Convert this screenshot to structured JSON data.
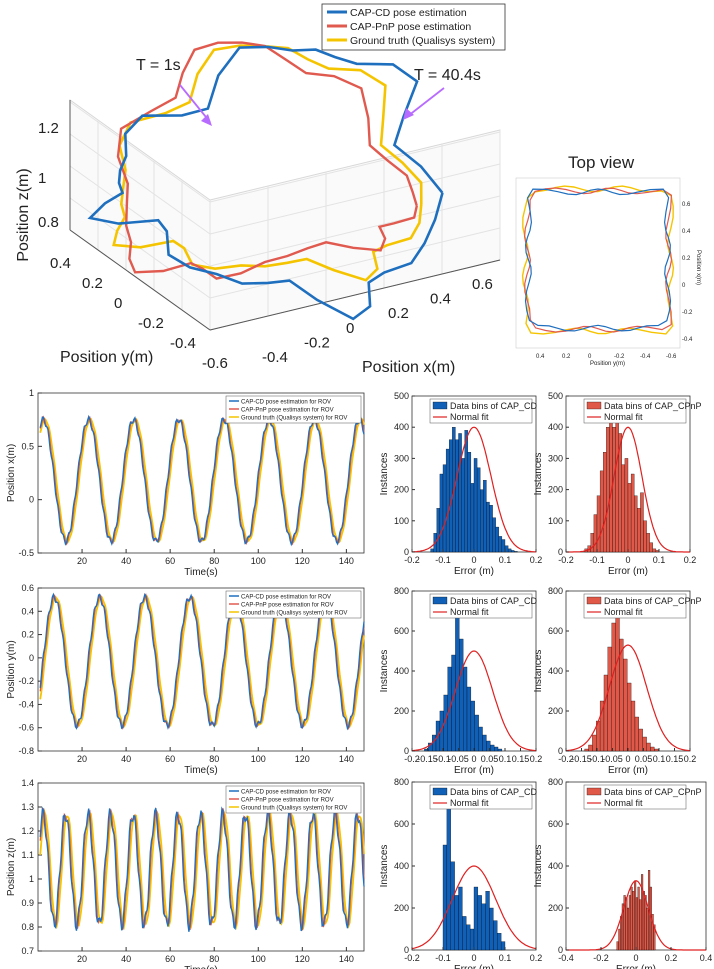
{
  "top": {
    "legend": [
      "CAP-CD pose estimation",
      "CAP-PnP pose estimation",
      "Ground truth (Qualisys system)"
    ],
    "annotations": [
      {
        "text": "T = 1s"
      },
      {
        "text": "T = 40.4s"
      }
    ],
    "z_label": "Position z(m)",
    "y_label": "Position y(m)",
    "x_label": "Position x(m)",
    "z_ticks": [
      "1.2",
      "1",
      "0.8"
    ],
    "y_ticks": [
      "0.4",
      "0.2",
      "0",
      "-0.2",
      "-0.4",
      "-0.6"
    ],
    "x_ticks": [
      "-0.4",
      "-0.2",
      "0",
      "0.2",
      "0.4",
      "0.6"
    ],
    "topview": {
      "title": "Top view",
      "xlabel": "Position y(m)",
      "ylabel": "Position x(m)",
      "x_ticks": [
        "0.4",
        "0.2",
        "0",
        "-0.2",
        "-0.4",
        "-0.6"
      ],
      "y_ticks": [
        "0.6",
        "0.4",
        "0.2",
        "0",
        "-0.2",
        "-0.4"
      ]
    }
  },
  "colors": {
    "cd": "#1f6fbf",
    "pnp": "#e05a4f",
    "gt": "#f5c400",
    "fit": "#e02020",
    "barcd": "#1060b8",
    "barpnp": "#e05848"
  },
  "chart_data": [
    {
      "type": "line",
      "ylabel": "Position x(m)",
      "xlabel": "Time(s)",
      "xlim": [
        0,
        148
      ],
      "ylim": [
        -0.5,
        1
      ],
      "x_ticks": [
        20,
        40,
        60,
        80,
        100,
        120,
        140
      ],
      "y_ticks": [
        -0.5,
        0,
        0.5,
        1
      ],
      "legend": [
        "CAP-CD pose estimation for ROV",
        "CAP-PnP pose estimation for ROV",
        "Ground truth (Qualisys system) for ROV"
      ],
      "wave": {
        "mean": 0.18,
        "amp": 0.57,
        "period": 20.5,
        "phase": -2.5
      }
    },
    {
      "type": "line",
      "ylabel": "Position y(m)",
      "xlabel": "Time(s)",
      "xlim": [
        0,
        148
      ],
      "ylim": [
        -0.8,
        0.6
      ],
      "x_ticks": [
        20,
        40,
        60,
        80,
        100,
        120,
        140
      ],
      "y_ticks": [
        -0.8,
        -0.6,
        -0.4,
        -0.2,
        0,
        0.2,
        0.4,
        0.6
      ],
      "legend": [
        "CAP-CD pose estimation for ROV",
        "CAP-PnP pose estimation for ROV",
        "Ground truth (Qualisys system) for ROV"
      ],
      "wave": {
        "mean": -0.03,
        "amp": 0.55,
        "period": 20.5,
        "phase": 2.5
      }
    },
    {
      "type": "line",
      "ylabel": "Position z(m)",
      "xlabel": "Time(s)",
      "xlim": [
        0,
        148
      ],
      "ylim": [
        0.7,
        1.4
      ],
      "x_ticks": [
        20,
        40,
        60,
        80,
        100,
        120,
        140
      ],
      "y_ticks": [
        0.7,
        0.8,
        0.9,
        1,
        1.1,
        1.2,
        1.3,
        1.4
      ],
      "legend": [
        "CAP-CD pose estimation for ROV",
        "CAP-PnP pose estimation for ROV",
        "Ground truth (Qualisys system) for ROV"
      ],
      "wave": {
        "mean": 1.04,
        "amp": 0.23,
        "period": 10.2,
        "phase": 0
      }
    },
    {
      "type": "bar",
      "legend": [
        "Data bins of CAP_CD",
        "Normal fit"
      ],
      "xlabel": "Error (m)",
      "ylabel": "Instances",
      "xlim": [
        -0.2,
        0.2
      ],
      "ylim": [
        0,
        500
      ],
      "x_ticks": [
        -0.2,
        -0.1,
        0,
        0.1,
        0.2
      ],
      "y_ticks": [
        0,
        100,
        200,
        300,
        400,
        500
      ],
      "bin_start": -0.14,
      "bin_width": 0.01,
      "values": [
        10,
        60,
        140,
        250,
        280,
        330,
        360,
        400,
        360,
        380,
        300,
        390,
        320,
        220,
        300,
        270,
        200,
        230,
        160,
        150,
        110,
        80,
        50,
        40,
        20,
        10,
        5,
        2
      ],
      "fit": {
        "mu": 0,
        "sigma": 0.055,
        "peak": 400
      }
    },
    {
      "type": "bar",
      "legend": [
        "Data bins of CAP_CPnP",
        "Normal fit"
      ],
      "xlabel": "Error (m)",
      "ylabel": "Instances",
      "xlim": [
        -0.2,
        0.2
      ],
      "ylim": [
        0,
        500
      ],
      "x_ticks": [
        -0.2,
        -0.1,
        0,
        0.1,
        0.2
      ],
      "y_ticks": [
        0,
        100,
        200,
        300,
        400,
        500
      ],
      "bin_start": -0.14,
      "bin_width": 0.01,
      "values": [
        10,
        20,
        60,
        120,
        180,
        260,
        320,
        400,
        460,
        400,
        420,
        380,
        280,
        300,
        220,
        250,
        180,
        140,
        190,
        100,
        60,
        30,
        10,
        5
      ],
      "fit": {
        "mu": 0,
        "sigma": 0.045,
        "peak": 400
      }
    },
    {
      "type": "bar",
      "legend": [
        "Data bins of CAP_CD",
        "Normal fit"
      ],
      "xlabel": "Error (m)",
      "ylabel": "Instances",
      "xlim": [
        -0.2,
        0.2
      ],
      "ylim": [
        0,
        800
      ],
      "x_ticks": [
        -0.2,
        -0.15,
        -0.1,
        -0.05,
        0,
        0.05,
        0.1,
        0.15,
        0.2
      ],
      "y_ticks": [
        0,
        200,
        400,
        600,
        800
      ],
      "bin_start": -0.16,
      "bin_width": 0.0125,
      "values": [
        10,
        40,
        80,
        150,
        200,
        280,
        420,
        480,
        680,
        560,
        420,
        320,
        250,
        180,
        120,
        80,
        50,
        30,
        20,
        10
      ],
      "fit": {
        "mu": 0,
        "sigma": 0.06,
        "peak": 500
      }
    },
    {
      "type": "bar",
      "legend": [
        "Data bins of CAP_CPnP",
        "Normal fit"
      ],
      "xlabel": "Error (m)",
      "ylabel": "Instances",
      "xlim": [
        -0.2,
        0.2
      ],
      "ylim": [
        0,
        800
      ],
      "x_ticks": [
        -0.2,
        -0.15,
        -0.1,
        -0.05,
        0,
        0.05,
        0.1,
        0.15,
        0.2
      ],
      "y_ticks": [
        0,
        200,
        400,
        600,
        800
      ],
      "bin_start": -0.14,
      "bin_width": 0.0125,
      "values": [
        10,
        30,
        80,
        150,
        250,
        380,
        520,
        640,
        680,
        560,
        460,
        340,
        250,
        170,
        110,
        70,
        40,
        20,
        10
      ],
      "fit": {
        "mu": 0,
        "sigma": 0.06,
        "peak": 530
      }
    },
    {
      "type": "bar",
      "legend": [
        "Data bins of CAP_CD",
        "Normal fit"
      ],
      "xlabel": "Error (m)",
      "ylabel": "Instances",
      "xlim": [
        -0.2,
        0.2
      ],
      "ylim": [
        0,
        800
      ],
      "x_ticks": [
        -0.2,
        -0.1,
        0,
        0.1,
        0.2
      ],
      "y_ticks": [
        0,
        200,
        400,
        600,
        800
      ],
      "bin_start": -0.1,
      "bin_width": 0.0125,
      "values": [
        500,
        680,
        420,
        260,
        300,
        160,
        120,
        100,
        300,
        260,
        220,
        280,
        200,
        140,
        80,
        40
      ],
      "fit": {
        "mu": 0,
        "sigma": 0.07,
        "peak": 400
      }
    },
    {
      "type": "bar",
      "legend": [
        "Data bins of CAP_CPnP",
        "Normal fit"
      ],
      "xlabel": "Error (m)",
      "ylabel": "Instances",
      "xlim": [
        -0.4,
        0.4
      ],
      "ylim": [
        0,
        800
      ],
      "x_ticks": [
        -0.4,
        -0.2,
        0,
        0.2,
        0.4
      ],
      "y_ticks": [
        0,
        200,
        400,
        600,
        800
      ],
      "bin_start": -0.11,
      "bin_width": 0.01,
      "values": [
        40,
        100,
        160,
        220,
        260,
        250,
        200,
        260,
        300,
        280,
        330,
        250,
        300,
        240,
        360,
        280,
        260,
        200,
        380,
        300,
        170,
        120
      ],
      "fit": {
        "mu": 0,
        "sigma": 0.07,
        "peak": 330
      }
    }
  ]
}
